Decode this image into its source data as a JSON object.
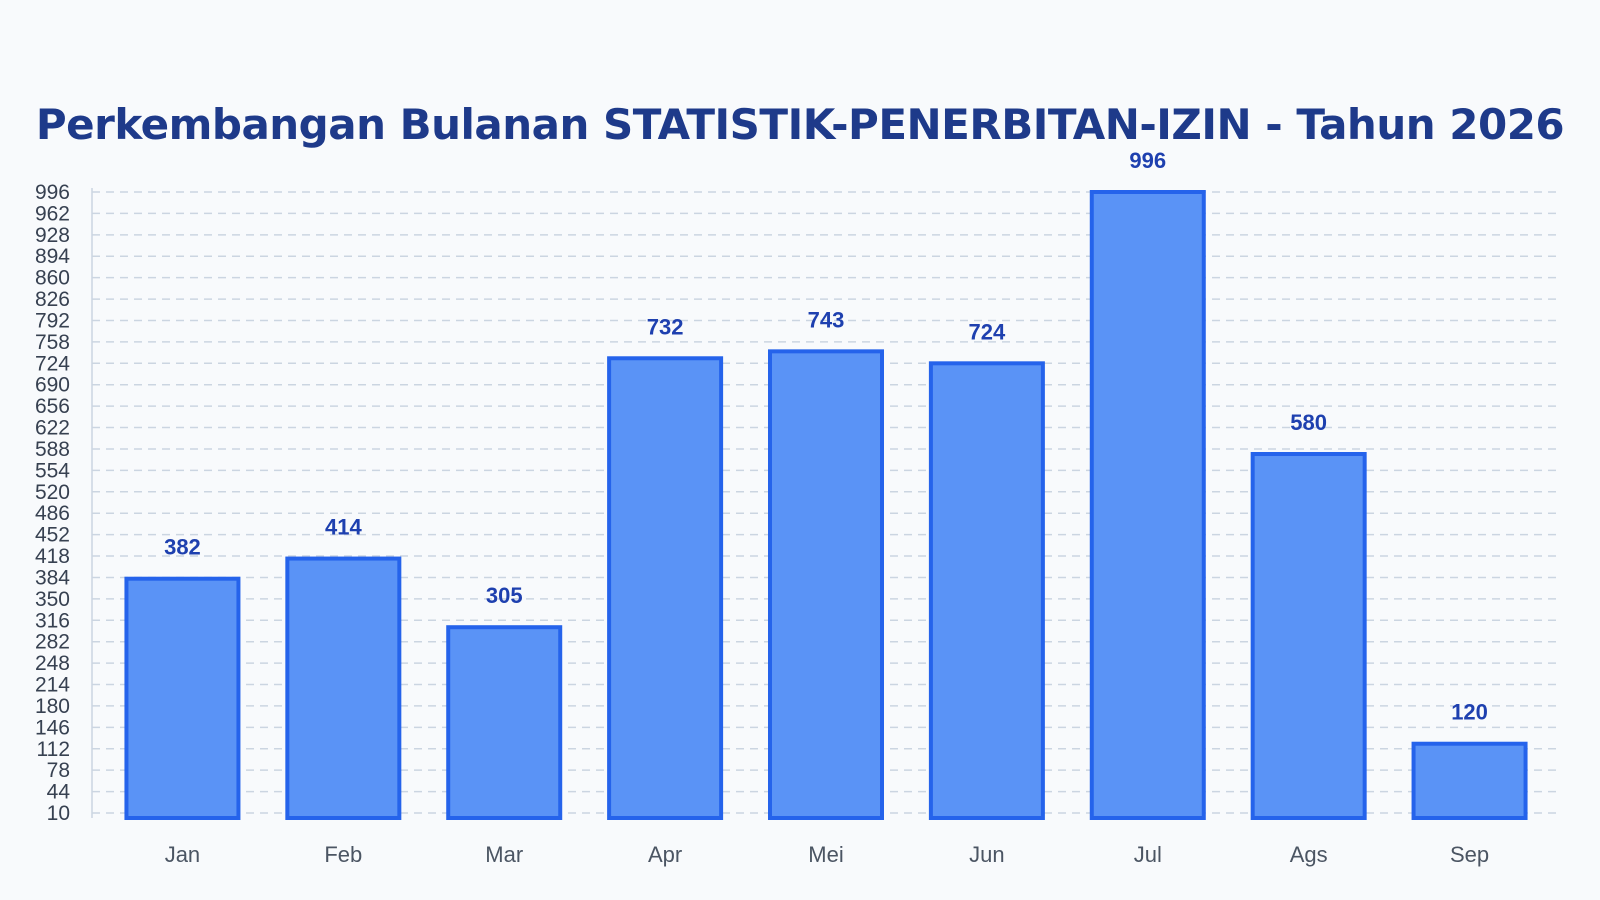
{
  "chart_data": {
    "type": "bar",
    "title": "Perkembangan Bulanan STATISTIK-PENERBITAN-IZIN - Tahun 2026",
    "categories": [
      "Jan",
      "Feb",
      "Mar",
      "Apr",
      "Mei",
      "Jun",
      "Jul",
      "Ags",
      "Sep"
    ],
    "values": [
      382,
      414,
      305,
      732,
      743,
      724,
      996,
      580,
      120
    ],
    "ylim": [
      10,
      996
    ],
    "yticks": [
      10,
      44,
      78,
      112,
      146,
      180,
      214,
      248,
      282,
      316,
      350,
      384,
      418,
      452,
      486,
      520,
      554,
      588,
      622,
      656,
      690,
      724,
      758,
      792,
      826,
      860,
      894,
      928,
      962,
      996
    ],
    "grid": true,
    "bar_color": "#5a93f6",
    "bar_border_color": "#2563eb",
    "label_color": "#1e40af",
    "title_color": "#1e3a8a"
  }
}
